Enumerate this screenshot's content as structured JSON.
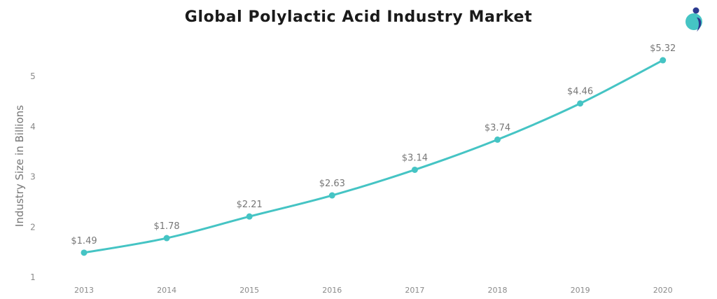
{
  "title": "Global Polylactic Acid Industry Market",
  "logo": {
    "icon": "brand-logo-icon",
    "colors": [
      "#45c4c4",
      "#2b3a8f"
    ]
  },
  "chart_data": {
    "type": "line",
    "title": "Global Polylactic Acid Industry Market",
    "xlabel": "",
    "ylabel": "Industry Size in Billions",
    "categories": [
      "2013",
      "2014",
      "2015",
      "2016",
      "2017",
      "2018",
      "2019",
      "2020"
    ],
    "series": [
      {
        "name": "Industry Size",
        "values": [
          1.49,
          1.78,
          2.21,
          2.63,
          3.14,
          3.74,
          4.46,
          5.32
        ],
        "labels": [
          "$1.49",
          "$1.78",
          "$2.21",
          "$2.63",
          "$3.14",
          "$3.74",
          "$4.46",
          "$5.32"
        ],
        "color": "#45c4c4"
      }
    ],
    "yticks": [
      "1",
      "2",
      "3",
      "4",
      "5"
    ],
    "ylim": [
      1,
      5.5
    ],
    "grid": false,
    "legend": "none"
  }
}
